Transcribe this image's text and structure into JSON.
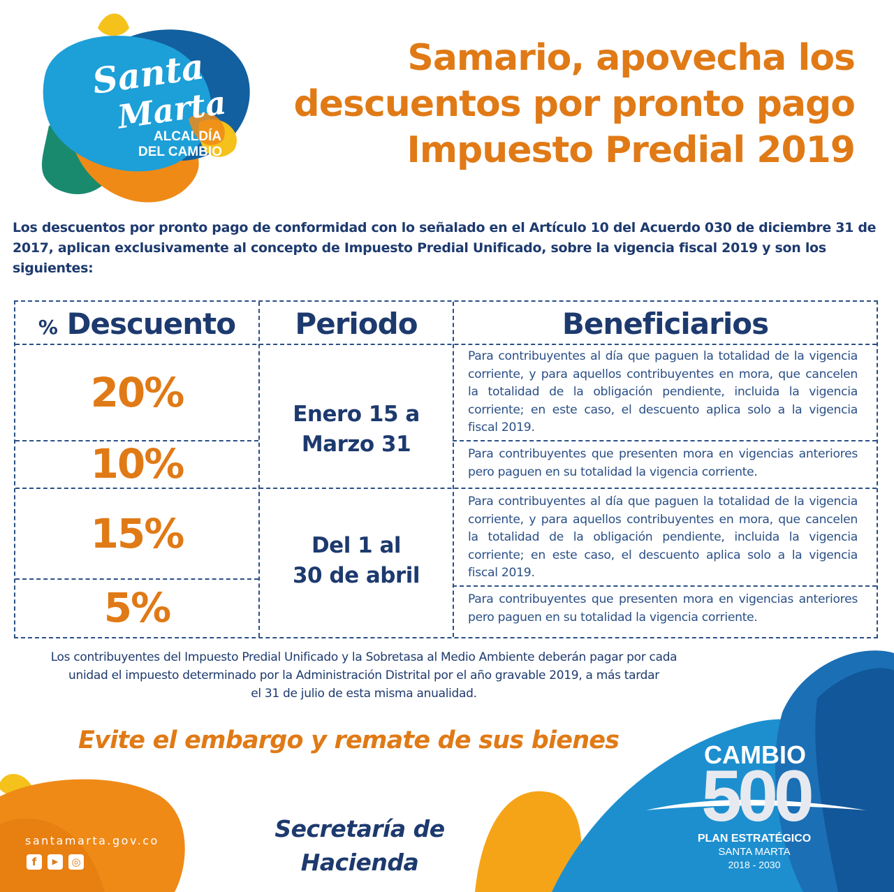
{
  "logo": {
    "line1": "Santa",
    "line2": "Marta",
    "sub1": "ALCALDÍA",
    "sub2": "DEL CAMBIO"
  },
  "headline": {
    "line1": "Samario, apovecha los",
    "line2": "descuentos por pronto pago",
    "line3": "Impuesto Predial 2019"
  },
  "intro": "Los descuentos por pronto pago de conformidad con lo señalado en el Artículo 10 del Acuerdo 030 de diciembre 31 de 2017, aplican exclusivamente al concepto de Impuesto Predial Unificado, sobre la vigencia fiscal 2019 y son los siguientes:",
  "table": {
    "headers": {
      "pct_symbol": "%",
      "descuento": "Descuento",
      "periodo": "Periodo",
      "beneficiarios": "Beneficiarios"
    },
    "rows": [
      {
        "descuento": "20%",
        "beneficiarios": "Para contribuyentes al día que paguen la totalidad de la vigencia corriente, y para aquellos contribuyentes en mora, que cancelen la totalidad de la obligación pendiente,  incluida la vigencia corriente; en este caso, el descuento aplica solo a la vigencia fiscal 2019."
      },
      {
        "descuento": "10%",
        "beneficiarios": "Para contribuyentes que presenten mora en vigencias anteriores pero paguen en su totalidad la vigencia corriente."
      },
      {
        "descuento": "15%",
        "beneficiarios": "Para contribuyentes al día que paguen la totalidad de la vigencia corriente, y para aquellos contribuyentes en mora, que cancelen la totalidad de la obligación pendiente, incluida la vigencia corriente; en este caso, el descuento aplica solo a la vigencia fiscal 2019."
      },
      {
        "descuento": "5%",
        "beneficiarios": "Para contribuyentes que presenten mora en vigencias anteriores pero paguen en su totalidad la vigencia corriente."
      }
    ],
    "periods": [
      {
        "line1": "Enero 15 a",
        "line2": "Marzo 31"
      },
      {
        "line1": "Del 1 al",
        "line2": "30 de abril"
      }
    ]
  },
  "note": {
    "line1": "Los contribuyentes del Impuesto Predial Unificado y la  Sobretasa al Medio Ambiente deberán pagar por cada",
    "line2": "unidad el impuesto determinado por la  Administración Distrital por el año gravable 2019, a más tardar",
    "line3": "el 31 de julio de esta misma anualidad."
  },
  "warning": "Evite el embargo y remate de sus bienes",
  "secretaria": {
    "line1": "Secretaría de",
    "line2": "Hacienda"
  },
  "footer": {
    "website": "santamarta.gov.co",
    "social_icons": [
      "facebook-icon",
      "youtube-icon",
      "instagram-icon"
    ],
    "social_glyphs": {
      "facebook": "f",
      "youtube": "▶",
      "instagram": "◎"
    }
  },
  "cambio": {
    "title": "CAMBIO",
    "number": "500",
    "plan": "PLAN ESTRATÉGICO",
    "city": "SANTA MARTA",
    "years": "2018 - 2030"
  },
  "colors": {
    "orange": "#e07a16",
    "navy": "#1d3a6e",
    "blue": "#1478be",
    "cyan": "#1ea0d8",
    "green": "#1a8a6e",
    "yellow": "#f5c21b"
  }
}
